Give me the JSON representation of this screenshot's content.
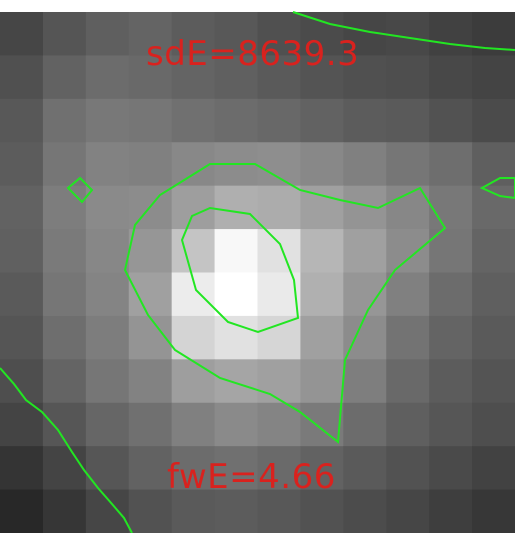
{
  "image": {
    "annotations": {
      "sd_label": "sdE=8639.3",
      "fw_label": "fwE=4.66"
    },
    "colors": {
      "annotation_text": "#d9221e",
      "contour": "#22e622",
      "top_border": "#ffffff"
    },
    "pixel_grid": {
      "rows": 12,
      "cols": 12,
      "gray_levels": [
        [
          70,
          85,
          95,
          100,
          92,
          88,
          80,
          75,
          70,
          72,
          65,
          60
        ],
        [
          80,
          98,
          108,
          105,
          100,
          96,
          90,
          84,
          80,
          78,
          72,
          68
        ],
        [
          88,
          112,
          120,
          118,
          112,
          108,
          104,
          98,
          92,
          90,
          82,
          75
        ],
        [
          92,
          118,
          130,
          128,
          136,
          140,
          142,
          136,
          128,
          118,
          110,
          95
        ],
        [
          98,
          125,
          138,
          140,
          158,
          175,
          172,
          160,
          148,
          135,
          120,
          105
        ],
        [
          96,
          122,
          135,
          150,
          196,
          248,
          225,
          182,
          160,
          140,
          118,
          100
        ],
        [
          90,
          118,
          132,
          160,
          236,
          255,
          234,
          176,
          150,
          128,
          108,
          95
        ],
        [
          85,
          110,
          125,
          148,
          212,
          225,
          214,
          160,
          140,
          115,
          100,
          90
        ],
        [
          78,
          100,
          118,
          130,
          158,
          165,
          160,
          148,
          126,
          105,
          92,
          84
        ],
        [
          68,
          86,
          102,
          112,
          128,
          138,
          132,
          122,
          108,
          95,
          86,
          78
        ],
        [
          52,
          68,
          86,
          98,
          108,
          112,
          106,
          98,
          90,
          82,
          74,
          66
        ],
        [
          40,
          54,
          70,
          82,
          90,
          92,
          88,
          82,
          76,
          70,
          62,
          55
        ]
      ]
    }
  }
}
